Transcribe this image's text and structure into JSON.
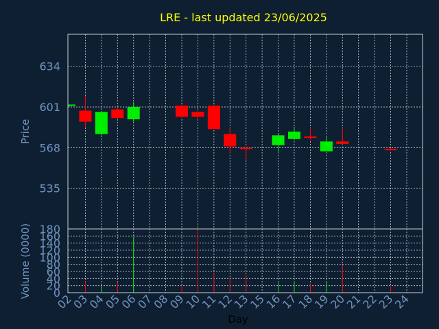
{
  "title": "LRE - last updated 23/06/2025",
  "colors": {
    "background": "#0f1f32",
    "plot_background": "#0f1f32",
    "grid": "#c8d0dc",
    "frame": "#c8d0dc",
    "up": "#00ee00",
    "down": "#ff0000",
    "title": "#ffff00",
    "tick_text": "#6f94bf",
    "axis_label": "#6f94bf",
    "xlabel_text": "#000000"
  },
  "chart_data": [
    {
      "type": "candlestick",
      "ylabel": "Price",
      "ylim": [
        502,
        660
      ],
      "yticks": [
        634,
        601,
        568,
        535
      ],
      "grid": true,
      "days": [
        "02",
        "03",
        "04",
        "05",
        "06",
        "07",
        "08",
        "09",
        "10",
        "11",
        "12",
        "13",
        "15",
        "16",
        "17",
        "18",
        "19",
        "20",
        "21",
        "22",
        "23",
        "24"
      ],
      "candles": [
        {
          "day": "02",
          "open": 602,
          "high": 603,
          "low": 601,
          "close": 603
        },
        {
          "day": "03",
          "open": 598,
          "high": 610,
          "low": 585,
          "close": 589
        },
        {
          "day": "04",
          "open": 579,
          "high": 597,
          "low": 578,
          "close": 597
        },
        {
          "day": "05",
          "open": 599,
          "high": 601,
          "low": 591,
          "close": 592
        },
        {
          "day": "06",
          "open": 591,
          "high": 605,
          "low": 588,
          "close": 601
        },
        {
          "day": "09",
          "open": 602,
          "high": 603,
          "low": 592,
          "close": 593
        },
        {
          "day": "10",
          "open": 597,
          "high": 598,
          "low": 591,
          "close": 593
        },
        {
          "day": "11",
          "open": 602,
          "high": 603,
          "low": 583,
          "close": 583
        },
        {
          "day": "12",
          "open": 579,
          "high": 584,
          "low": 563,
          "close": 569
        },
        {
          "day": "13",
          "open": 568,
          "high": 569,
          "low": 558,
          "close": 567
        },
        {
          "day": "16",
          "open": 570,
          "high": 579,
          "low": 564,
          "close": 578
        },
        {
          "day": "17",
          "open": 575,
          "high": 585,
          "low": 574,
          "close": 581
        },
        {
          "day": "18",
          "open": 577,
          "high": 584,
          "low": 574,
          "close": 576
        },
        {
          "day": "19",
          "open": 565,
          "high": 577,
          "low": 565,
          "close": 573
        },
        {
          "day": "20",
          "open": 573,
          "high": 584,
          "low": 570,
          "close": 571
        },
        {
          "day": "23",
          "open": 567,
          "high": 568,
          "low": 565,
          "close": 566
        }
      ]
    },
    {
      "type": "bar",
      "ylabel": "Volume (0000)",
      "xlabel": "Day",
      "ylim": [
        0,
        180
      ],
      "yticks": [
        0,
        20,
        40,
        60,
        80,
        100,
        120,
        140,
        160,
        180
      ],
      "grid": true,
      "days": [
        "02",
        "03",
        "04",
        "05",
        "06",
        "07",
        "08",
        "09",
        "10",
        "11",
        "12",
        "13",
        "15",
        "16",
        "17",
        "18",
        "19",
        "20",
        "21",
        "22",
        "23",
        "24"
      ],
      "bars": [
        {
          "day": "02",
          "value": 2,
          "direction": "up"
        },
        {
          "day": "03",
          "value": 32,
          "direction": "down"
        },
        {
          "day": "04",
          "value": 20,
          "direction": "up"
        },
        {
          "day": "05",
          "value": 30,
          "direction": "down"
        },
        {
          "day": "06",
          "value": 158,
          "direction": "up"
        },
        {
          "day": "09",
          "value": 20,
          "direction": "down"
        },
        {
          "day": "10",
          "value": 180,
          "direction": "down"
        },
        {
          "day": "11",
          "value": 55,
          "direction": "down"
        },
        {
          "day": "12",
          "value": 45,
          "direction": "down"
        },
        {
          "day": "13",
          "value": 50,
          "direction": "down"
        },
        {
          "day": "16",
          "value": 28,
          "direction": "up"
        },
        {
          "day": "17",
          "value": 33,
          "direction": "up"
        },
        {
          "day": "18",
          "value": 25,
          "direction": "down"
        },
        {
          "day": "19",
          "value": 33,
          "direction": "up"
        },
        {
          "day": "20",
          "value": 78,
          "direction": "down"
        },
        {
          "day": "23",
          "value": 18,
          "direction": "down"
        }
      ]
    }
  ]
}
